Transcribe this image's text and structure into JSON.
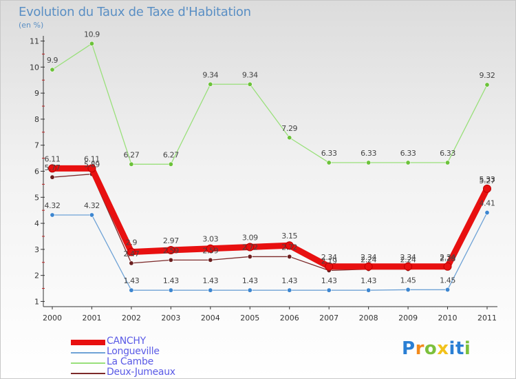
{
  "header": {
    "title": "Evolution du Taux de Taxe d'Habitation",
    "unit": "(en %)"
  },
  "brand": {
    "parts": [
      {
        "text": "P",
        "color": "#2a7fd4"
      },
      {
        "text": "r",
        "color": "#f28a1b"
      },
      {
        "text": "o",
        "color": "#7cc03c"
      },
      {
        "text": "x",
        "color": "#f2c21b"
      },
      {
        "text": "i",
        "color": "#2a7fd4"
      },
      {
        "text": "t",
        "color": "#2a7fd4"
      },
      {
        "text": "i",
        "color": "#7cc03c"
      }
    ]
  },
  "chart_data": {
    "type": "line",
    "title": "Evolution du Taux de Taxe d'Habitation",
    "ylabel": "(en %)",
    "xlabel": "",
    "x": [
      "2000",
      "2001",
      "2002",
      "2003",
      "2004",
      "2005",
      "2006",
      "2007",
      "2008",
      "2009",
      "2010",
      "2011"
    ],
    "y_ticks": [
      "1",
      "2",
      "3",
      "4",
      "5",
      "6",
      "7",
      "8",
      "9",
      "10",
      "11"
    ],
    "ylim": [
      0.8,
      11.2
    ],
    "grid": false,
    "legend_position": "bottom-left",
    "series": [
      {
        "name": "La Cambe",
        "color": "#99e07a",
        "marker_color": "#6cc23a",
        "width": 1.3,
        "marker_r": 3.2,
        "values": [
          9.9,
          10.9,
          6.27,
          6.27,
          9.34,
          9.34,
          7.29,
          6.33,
          6.33,
          6.33,
          6.33,
          9.32
        ],
        "labels": [
          "9.9",
          "10.9",
          "6.27",
          "6.27",
          "9.34",
          "9.34",
          "7.29",
          "6.33",
          "6.33",
          "6.33",
          "6.33",
          "9.32"
        ]
      },
      {
        "name": "Longueville",
        "color": "#6ea2d6",
        "marker_color": "#3d86d0",
        "width": 1.3,
        "marker_r": 3.2,
        "values": [
          4.32,
          4.32,
          1.43,
          1.43,
          1.43,
          1.43,
          1.43,
          1.43,
          1.43,
          1.45,
          1.45,
          4.41
        ],
        "labels": [
          "4.32",
          "4.32",
          "1.43",
          "1.43",
          "1.43",
          "1.43",
          "1.43",
          "1.43",
          "1.43",
          "1.45",
          "1.45",
          "4.41"
        ]
      },
      {
        "name": "Deux-Jumeaux",
        "color": "#7d2a2a",
        "marker_color": "#6b1f1f",
        "width": 1.3,
        "marker_r": 3.2,
        "values": [
          5.77,
          5.89,
          2.47,
          2.59,
          2.59,
          2.72,
          2.72,
          2.19,
          2.24,
          2.24,
          2.28,
          5.27
        ],
        "labels": [
          "5.77",
          "5.89",
          "2.47",
          "2.59",
          "2.59",
          "2.72",
          "2.72",
          "2.19",
          "2.24",
          "2.24",
          "2.28",
          "5.27"
        ]
      },
      {
        "name": "CANCHY",
        "color": "#e81010",
        "marker_color": "#e81010",
        "width": 9,
        "marker_r": 5.5,
        "values": [
          6.11,
          6.11,
          2.9,
          2.97,
          3.03,
          3.09,
          3.15,
          2.34,
          2.34,
          2.34,
          2.34,
          5.33
        ],
        "labels": [
          "6.11",
          "6.11",
          "2.9",
          "2.97",
          "3.03",
          "3.09",
          "3.15",
          "2.34",
          "2.34",
          "2.34",
          "2.34",
          "5.33"
        ]
      }
    ],
    "legend_order": [
      "CANCHY",
      "Longueville",
      "La Cambe",
      "Deux-Jumeaux"
    ]
  }
}
